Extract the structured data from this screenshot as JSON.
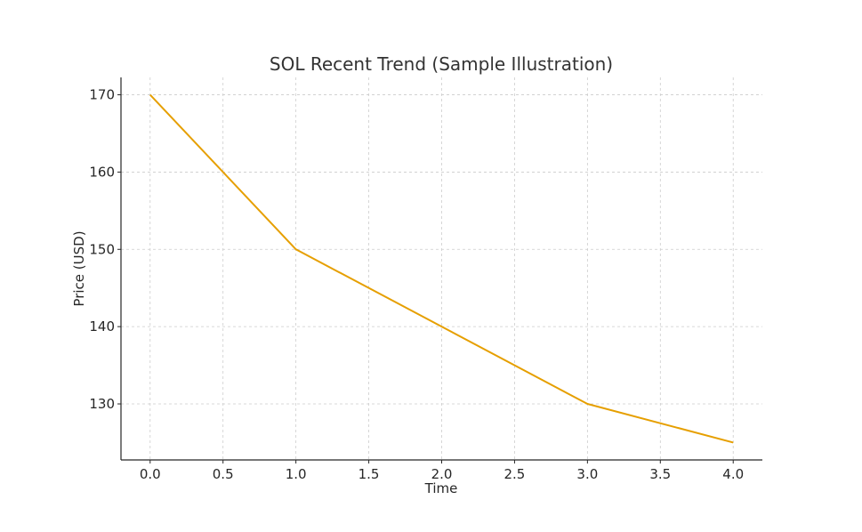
{
  "chart_data": {
    "type": "line",
    "title": "SOL Recent Trend (Sample Illustration)",
    "xlabel": "Time",
    "ylabel": "Price (USD)",
    "x": [
      0,
      1,
      2,
      3,
      4
    ],
    "series": [
      {
        "name": "SOL",
        "values": [
          170,
          150,
          140,
          130,
          125
        ],
        "color": "#E69F00"
      }
    ],
    "xlim": [
      -0.2,
      4.2
    ],
    "ylim": [
      122.75,
      172.25
    ],
    "xticks": [
      0,
      0.5,
      1,
      1.5,
      2,
      2.5,
      3,
      3.5,
      4
    ],
    "xtick_labels": [
      "0.0",
      "0.5",
      "1.0",
      "1.5",
      "2.0",
      "2.5",
      "3.0",
      "3.5",
      "4.0"
    ],
    "yticks": [
      130,
      140,
      150,
      160,
      170
    ],
    "ytick_labels": [
      "130",
      "140",
      "150",
      "160",
      "170"
    ],
    "grid": true,
    "legend": "none"
  }
}
